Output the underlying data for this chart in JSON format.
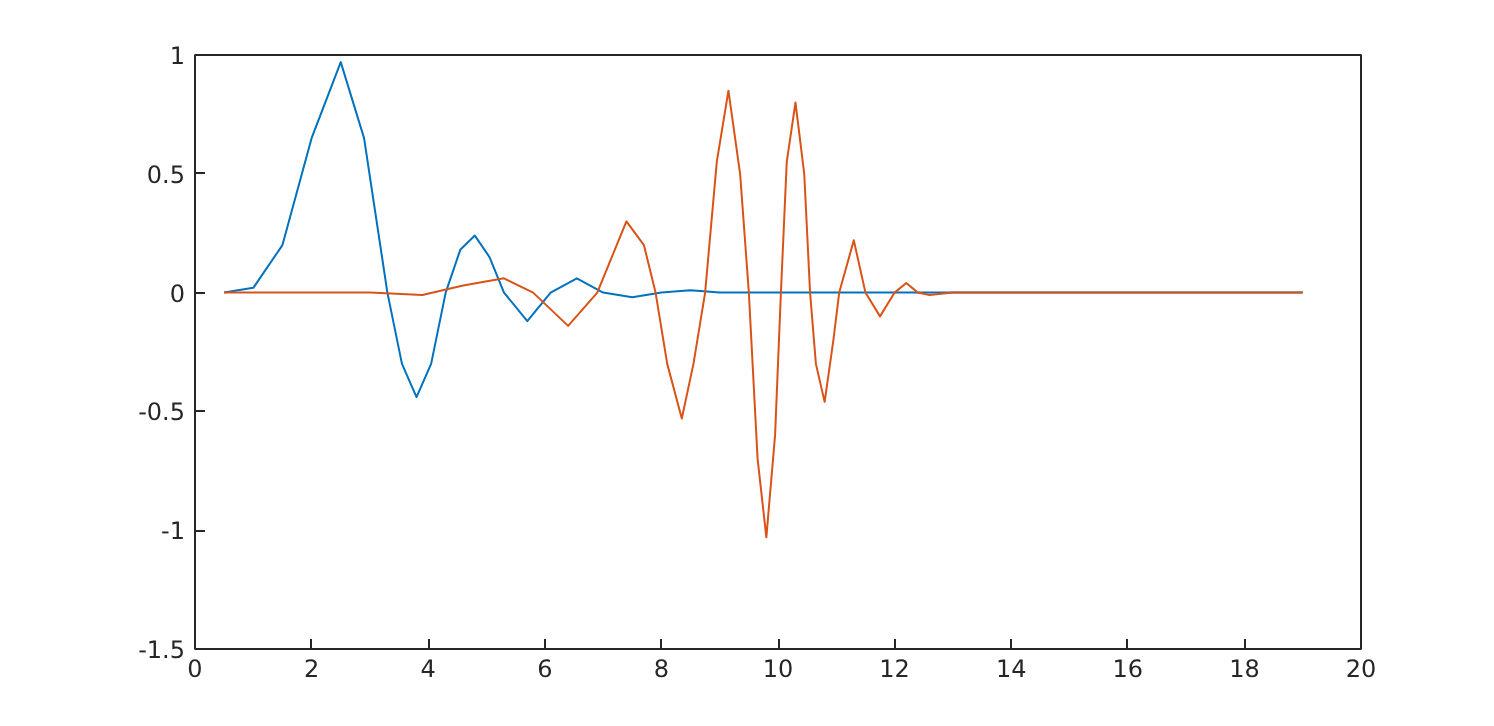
{
  "chart_data": {
    "type": "line",
    "xlim": [
      0,
      20
    ],
    "ylim": [
      -1.5,
      1
    ],
    "xticks": [
      0,
      2,
      4,
      6,
      8,
      10,
      12,
      14,
      16,
      18,
      20
    ],
    "yticks": [
      -1.5,
      -1,
      -0.5,
      0,
      0.5,
      1
    ],
    "grid": false,
    "series": [
      {
        "color": "#0072bd",
        "x": [
          0.5,
          1.0,
          1.5,
          2.0,
          2.5,
          2.9,
          3.3,
          3.55,
          3.8,
          4.05,
          4.3,
          4.55,
          4.8,
          5.05,
          5.3,
          5.7,
          6.1,
          6.55,
          7.0,
          7.5,
          8.0,
          8.5,
          9.0,
          19.0
        ],
        "values": [
          0,
          0.02,
          0.2,
          0.65,
          0.97,
          0.65,
          0,
          -0.3,
          -0.44,
          -0.3,
          0,
          0.18,
          0.24,
          0.15,
          0,
          -0.12,
          0,
          0.06,
          0,
          -0.02,
          0,
          0.01,
          0,
          0
        ]
      },
      {
        "color": "#d95319",
        "x": [
          0.5,
          3.0,
          3.9,
          4.6,
          5.3,
          5.8,
          6.4,
          6.9,
          7.4,
          7.7,
          7.9,
          8.1,
          8.35,
          8.55,
          8.75,
          8.95,
          9.15,
          9.35,
          9.5,
          9.65,
          9.8,
          9.95,
          10.05,
          10.15,
          10.3,
          10.45,
          10.55,
          10.65,
          10.8,
          10.95,
          11.05,
          11.3,
          11.5,
          11.75,
          12.0,
          12.2,
          12.4,
          12.6,
          13.0,
          19.0
        ],
        "values": [
          0,
          0,
          -0.01,
          0.03,
          0.06,
          0,
          -0.14,
          0,
          0.3,
          0.2,
          0,
          -0.3,
          -0.53,
          -0.3,
          0,
          0.55,
          0.85,
          0.5,
          0,
          -0.7,
          -1.03,
          -0.6,
          0,
          0.55,
          0.8,
          0.5,
          0,
          -0.3,
          -0.46,
          -0.2,
          0,
          0.22,
          0,
          -0.1,
          0,
          0.04,
          0,
          -0.01,
          0,
          0
        ]
      }
    ]
  }
}
